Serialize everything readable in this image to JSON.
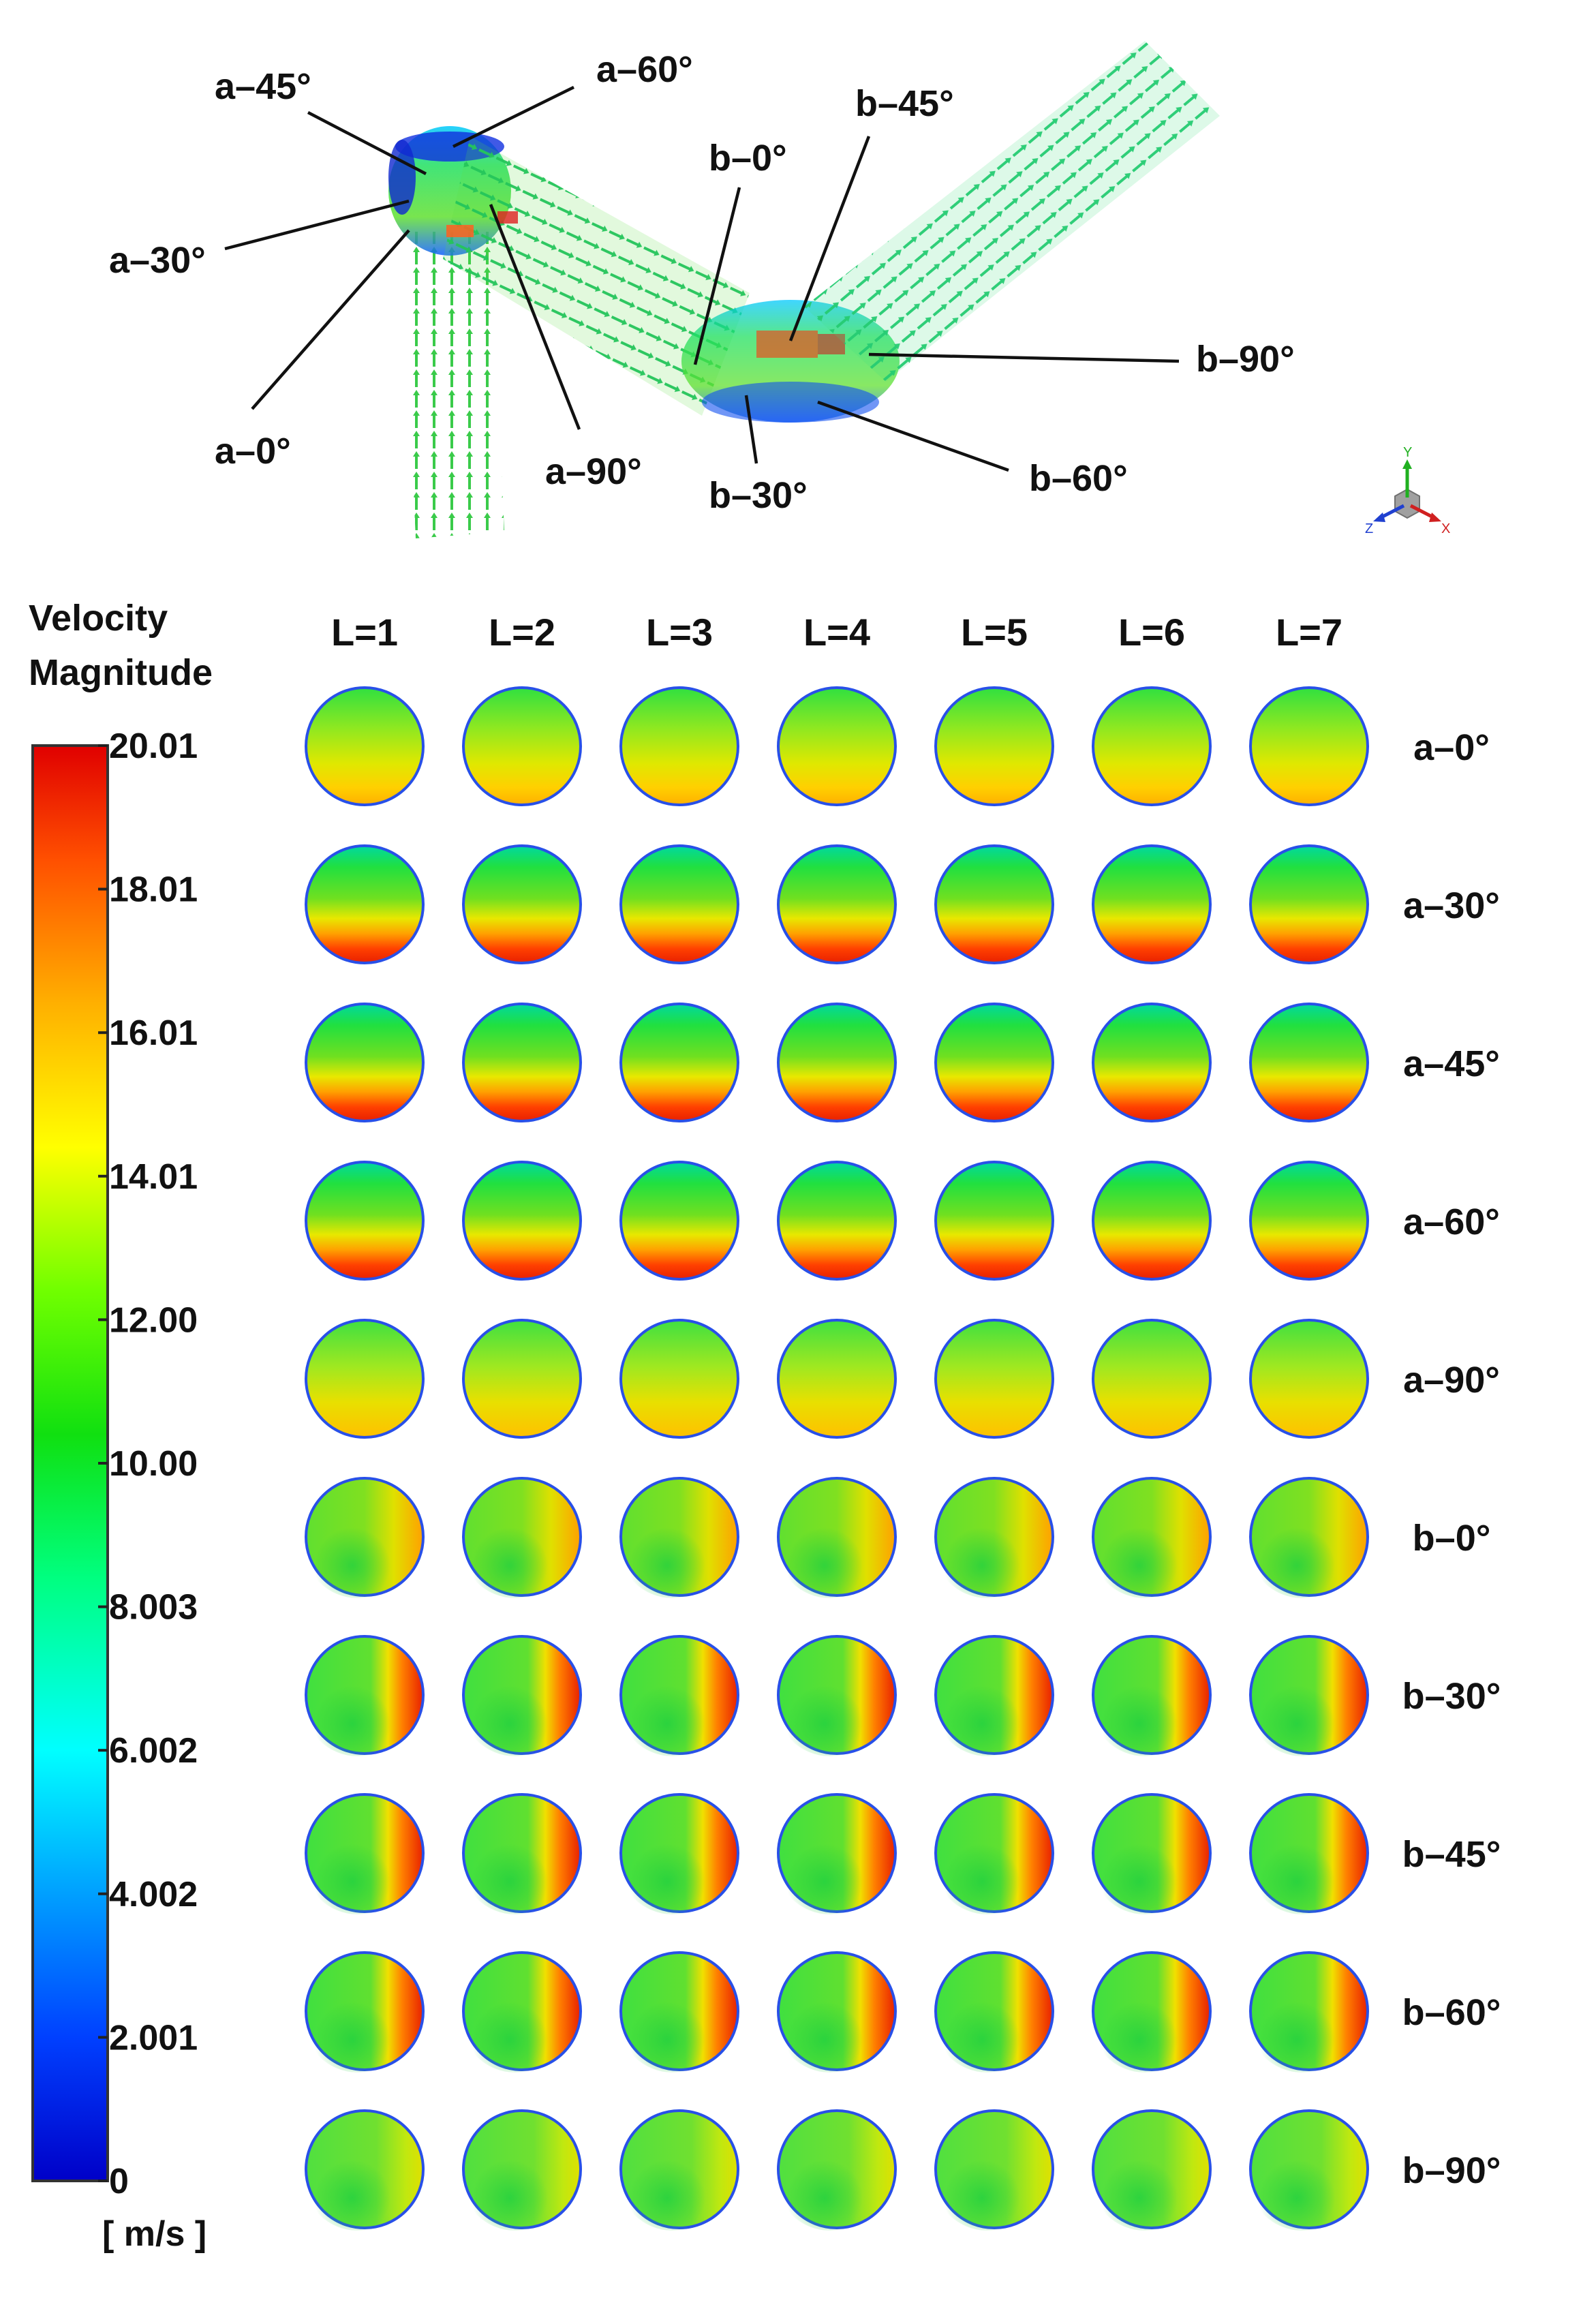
{
  "pipe_labels": [
    {
      "id": "a-45",
      "text": "a–45°"
    },
    {
      "id": "a-60",
      "text": "a–60°"
    },
    {
      "id": "a-30",
      "text": "a–30°"
    },
    {
      "id": "a-0",
      "text": "a–0°"
    },
    {
      "id": "a-90",
      "text": "a–90°"
    },
    {
      "id": "b-0",
      "text": "b–0°"
    },
    {
      "id": "b-45",
      "text": "b–45°"
    },
    {
      "id": "b-90",
      "text": "b–90°"
    },
    {
      "id": "b-60",
      "text": "b–60°"
    },
    {
      "id": "b-30",
      "text": "b–30°"
    }
  ],
  "axis_triad": {
    "x": "X",
    "y": "Y",
    "z": "Z"
  },
  "legend": {
    "title_line1": "Velocity",
    "title_line2": "Magnitude",
    "unit": "[ m/s ]",
    "ticks": [
      "20.01",
      "18.01",
      "16.01",
      "14.01",
      "12.00",
      "10.00",
      "8.003",
      "6.002",
      "4.002",
      "2.001",
      "0"
    ],
    "min": 0,
    "max": 20.01,
    "colors": [
      "#0000d8",
      "#0060ff",
      "#00ffff",
      "#00ff60",
      "#10e010",
      "#80ff00",
      "#ffff00",
      "#ffa000",
      "#ff5000",
      "#e00000"
    ]
  },
  "grid": {
    "columns": [
      "L=1",
      "L=2",
      "L=3",
      "L=4",
      "L=5",
      "L=6",
      "L=7"
    ],
    "rows": [
      "a–0°",
      "a–30°",
      "a–45°",
      "a–60°",
      "a–90°",
      "b–0°",
      "b–30°",
      "b–45°",
      "b–60°",
      "b–90°"
    ]
  }
}
